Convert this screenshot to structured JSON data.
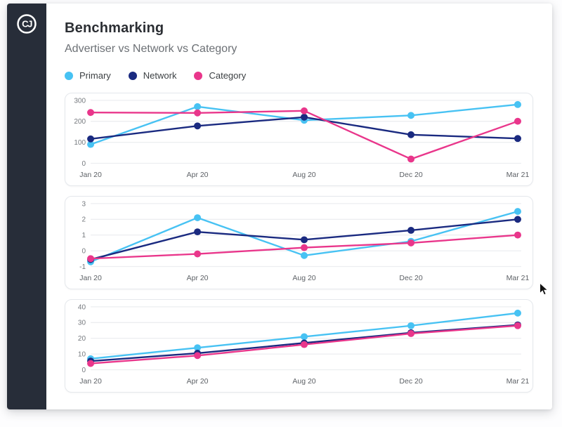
{
  "app": {
    "logo_text": "CJ"
  },
  "header": {
    "title": "Benchmarking",
    "subtitle": "Advertiser vs Network vs Category"
  },
  "legend": [
    {
      "label": "Primary",
      "color": "#47c2f3"
    },
    {
      "label": "Network",
      "color": "#1a2a80"
    },
    {
      "label": "Category",
      "color": "#e9368b"
    }
  ],
  "colors": {
    "primary": "#47c2f3",
    "network": "#1a2a80",
    "category": "#e9368b",
    "grid": "#eceef0",
    "sidebar": "#272d39"
  },
  "chart_data": [
    {
      "type": "line",
      "x": [
        "Jan 20",
        "Apr 20",
        "Aug 20",
        "Dec 20",
        "Mar 21"
      ],
      "ylim": [
        0,
        300
      ],
      "y_ticks": [
        0,
        100,
        200,
        300
      ],
      "grid": true,
      "legend_position": "top-shared",
      "series": [
        {
          "name": "Primary",
          "color": "#47c2f3",
          "values": [
            90,
            270,
            205,
            228,
            280
          ]
        },
        {
          "name": "Network",
          "color": "#1a2a80",
          "values": [
            116,
            178,
            220,
            136,
            118
          ]
        },
        {
          "name": "Category",
          "color": "#e9368b",
          "values": [
            242,
            240,
            250,
            20,
            200
          ]
        }
      ]
    },
    {
      "type": "line",
      "x": [
        "Jan 20",
        "Apr 20",
        "Aug 20",
        "Dec 20",
        "Mar 21"
      ],
      "ylim": [
        -1,
        3
      ],
      "y_ticks": [
        -1,
        0,
        1,
        2,
        3
      ],
      "grid": true,
      "legend_position": "top-shared",
      "series": [
        {
          "name": "Primary",
          "color": "#47c2f3",
          "values": [
            -0.7,
            2.1,
            -0.3,
            0.6,
            2.5
          ]
        },
        {
          "name": "Network",
          "color": "#1a2a80",
          "values": [
            -0.55,
            1.2,
            0.7,
            1.3,
            2.0
          ]
        },
        {
          "name": "Category",
          "color": "#e9368b",
          "values": [
            -0.5,
            -0.2,
            0.2,
            0.5,
            1.0
          ]
        }
      ]
    },
    {
      "type": "line",
      "x": [
        "Jan 20",
        "Apr 20",
        "Aug 20",
        "Dec 20",
        "Mar 21"
      ],
      "ylim": [
        0,
        40
      ],
      "y_ticks": [
        0,
        10,
        20,
        30,
        40
      ],
      "grid": true,
      "legend_position": "top-shared",
      "series": [
        {
          "name": "Primary",
          "color": "#47c2f3",
          "values": [
            7,
            14,
            21,
            28,
            36
          ]
        },
        {
          "name": "Network",
          "color": "#1a2a80",
          "values": [
            5.5,
            10.5,
            17,
            23.5,
            28.5
          ]
        },
        {
          "name": "Category",
          "color": "#e9368b",
          "values": [
            4,
            9,
            16,
            23,
            28
          ]
        }
      ]
    }
  ]
}
